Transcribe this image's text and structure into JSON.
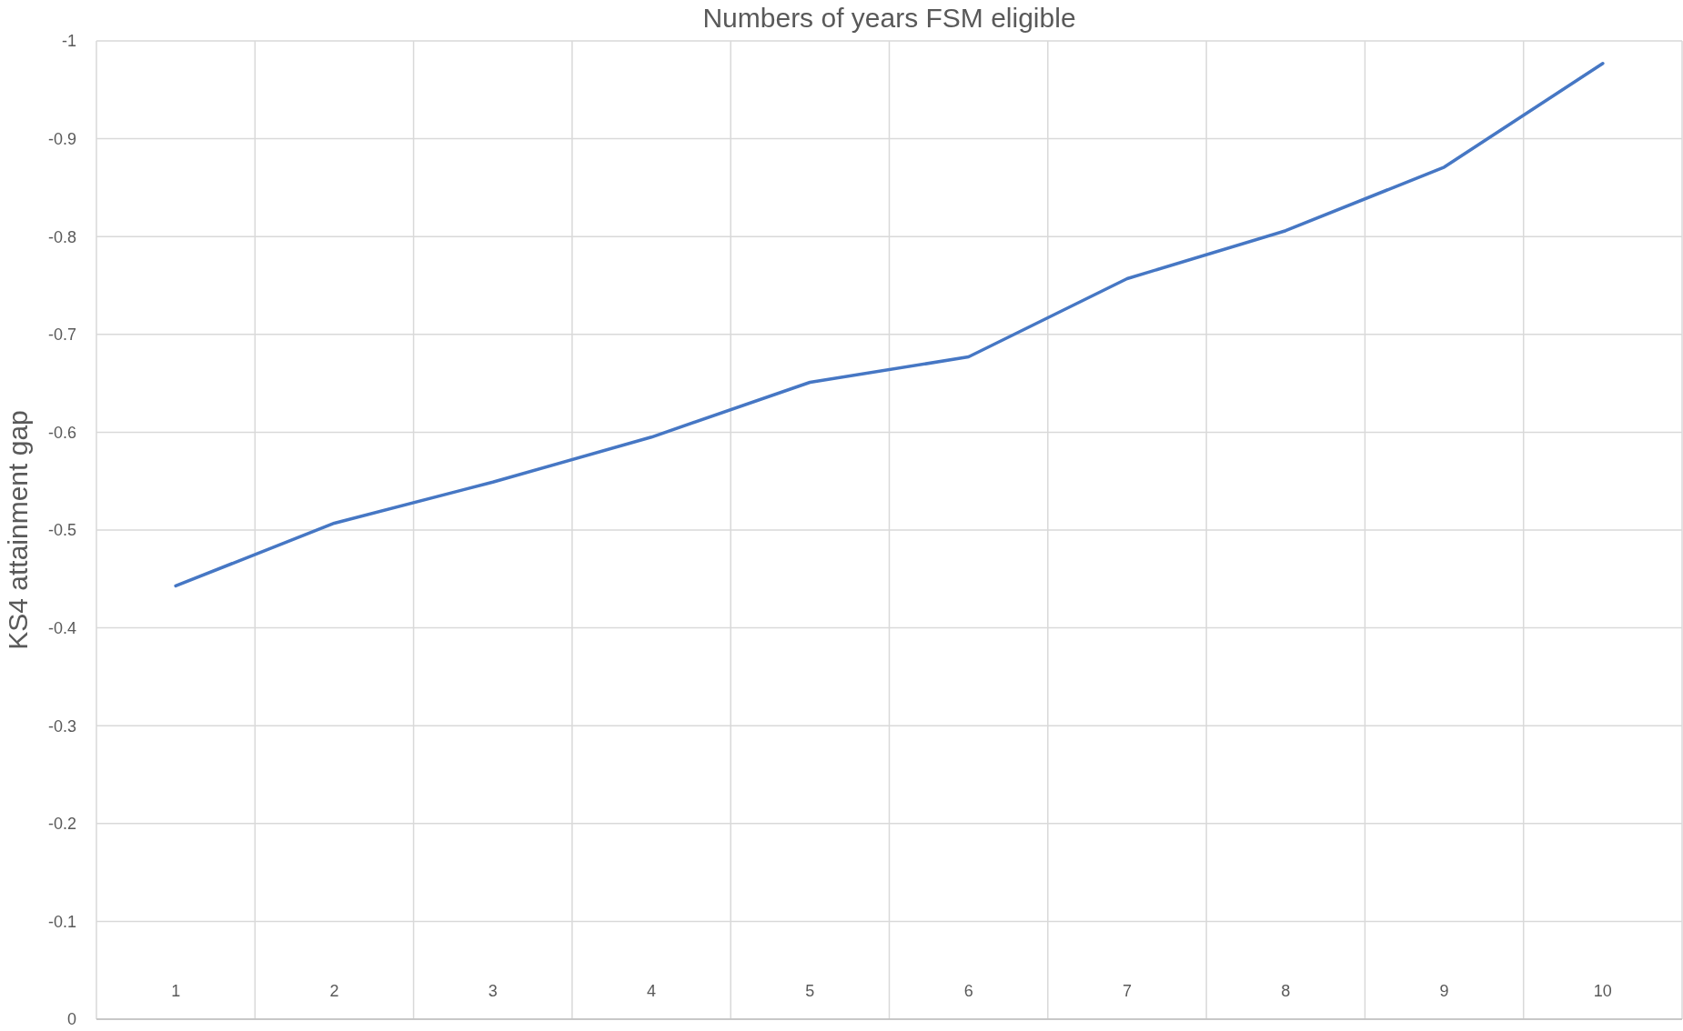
{
  "chart_data": {
    "type": "line",
    "title": "Numbers of years FSM eligible",
    "ylabel": "KS4 attainment gap",
    "categories": [
      "1",
      "2",
      "3",
      "4",
      "5",
      "6",
      "7",
      "8",
      "9",
      "10"
    ],
    "series": [
      {
        "color": "#4677c4",
        "values": [
          -0.443,
          -0.507,
          -0.549,
          -0.595,
          -0.651,
          -0.677,
          -0.757,
          -0.806,
          -0.871,
          -0.977
        ]
      }
    ],
    "ylim": [
      0,
      -1
    ],
    "yticks": [
      -1,
      -0.9,
      -0.8,
      -0.7,
      -0.6,
      -0.5,
      -0.4,
      -0.3,
      -0.2,
      -0.1,
      0
    ],
    "grid": true,
    "marker": "none",
    "line_style": "solid"
  }
}
